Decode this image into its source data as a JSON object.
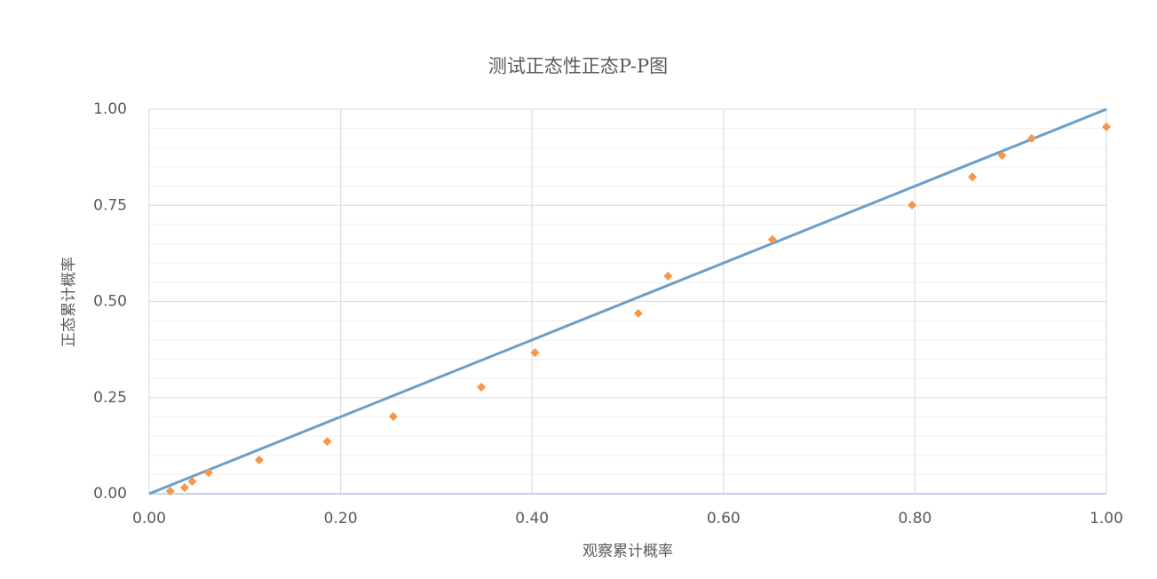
{
  "chart_data": {
    "type": "scatter",
    "title": "测试正态性正态P-P图",
    "x_label": "观察累计概率",
    "y_label": "正态累计概率",
    "xlim": [
      0,
      1
    ],
    "ylim": [
      0,
      1
    ],
    "xticks": [
      {
        "value": 0,
        "label": "0.00"
      },
      {
        "value": 0.2,
        "label": "0.20"
      },
      {
        "value": 0.4,
        "label": "0.40"
      },
      {
        "value": 0.6,
        "label": "0.60"
      },
      {
        "value": 0.8,
        "label": "0.80"
      },
      {
        "value": 1,
        "label": "1.00"
      }
    ],
    "yticks": [
      {
        "value": 0,
        "label": "0.00"
      },
      {
        "value": 0.25,
        "label": "0.25"
      },
      {
        "value": 0.5,
        "label": "0.50"
      },
      {
        "value": 0.75,
        "label": "0.75"
      },
      {
        "value": 1,
        "label": "1.00"
      }
    ],
    "minor_yticks": [
      0.05,
      0.1,
      0.15,
      0.2,
      0.3,
      0.35,
      0.4,
      0.45,
      0.55,
      0.6,
      0.65,
      0.7,
      0.8,
      0.85,
      0.9,
      0.95
    ],
    "grid": true,
    "series": [
      {
        "type": "line",
        "color": "#6a9fcb",
        "x": [
          0,
          1
        ],
        "values": [
          0,
          1
        ]
      },
      {
        "type": "scatter",
        "color": "#f79646",
        "x": [
          0.022,
          0.037,
          0.045,
          0.062,
          0.115,
          0.186,
          0.255,
          0.347,
          0.403,
          0.511,
          0.542,
          0.651,
          0.797,
          0.86,
          0.891,
          0.922,
          1.0
        ],
        "values": [
          0.007,
          0.016,
          0.032,
          0.055,
          0.088,
          0.136,
          0.201,
          0.277,
          0.367,
          0.469,
          0.566,
          0.661,
          0.751,
          0.824,
          0.88,
          0.924,
          0.954
        ]
      }
    ]
  }
}
